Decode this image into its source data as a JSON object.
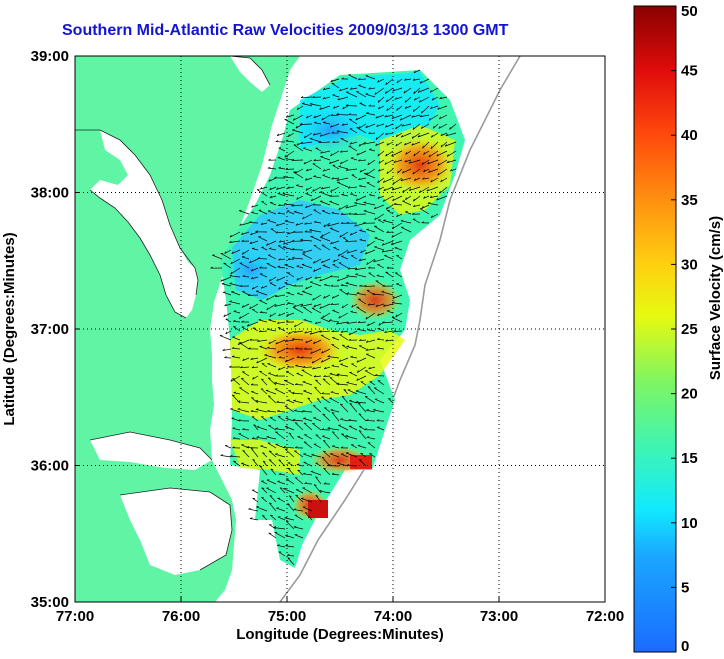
{
  "chart_data": {
    "type": "heatmap",
    "title": "Southern Mid-Atlantic Raw Velocities 2009/03/13 1300 GMT",
    "xlabel": "Longitude (Degrees:Minutes)",
    "ylabel": "Latitude (Degrees:Minutes)",
    "colorbar_label": "Surface Velocity (cm/s)",
    "x_ticks": [
      "77:00",
      "76:00",
      "75:00",
      "74:00",
      "73:00",
      "72:00"
    ],
    "y_ticks": [
      "35:00",
      "36:00",
      "37:00",
      "38:00",
      "39:00"
    ],
    "colorbar_ticks": [
      "0",
      "5",
      "10",
      "15",
      "20",
      "25",
      "30",
      "35",
      "40",
      "45",
      "50"
    ],
    "xlim": [
      -77,
      -72
    ],
    "ylim": [
      35,
      39
    ],
    "clim": [
      0,
      50
    ],
    "grid": true,
    "colors": {
      "land": "#5ff5a5",
      "title": "#1414d6",
      "arrows": "#000000",
      "coast": "#222222"
    }
  }
}
